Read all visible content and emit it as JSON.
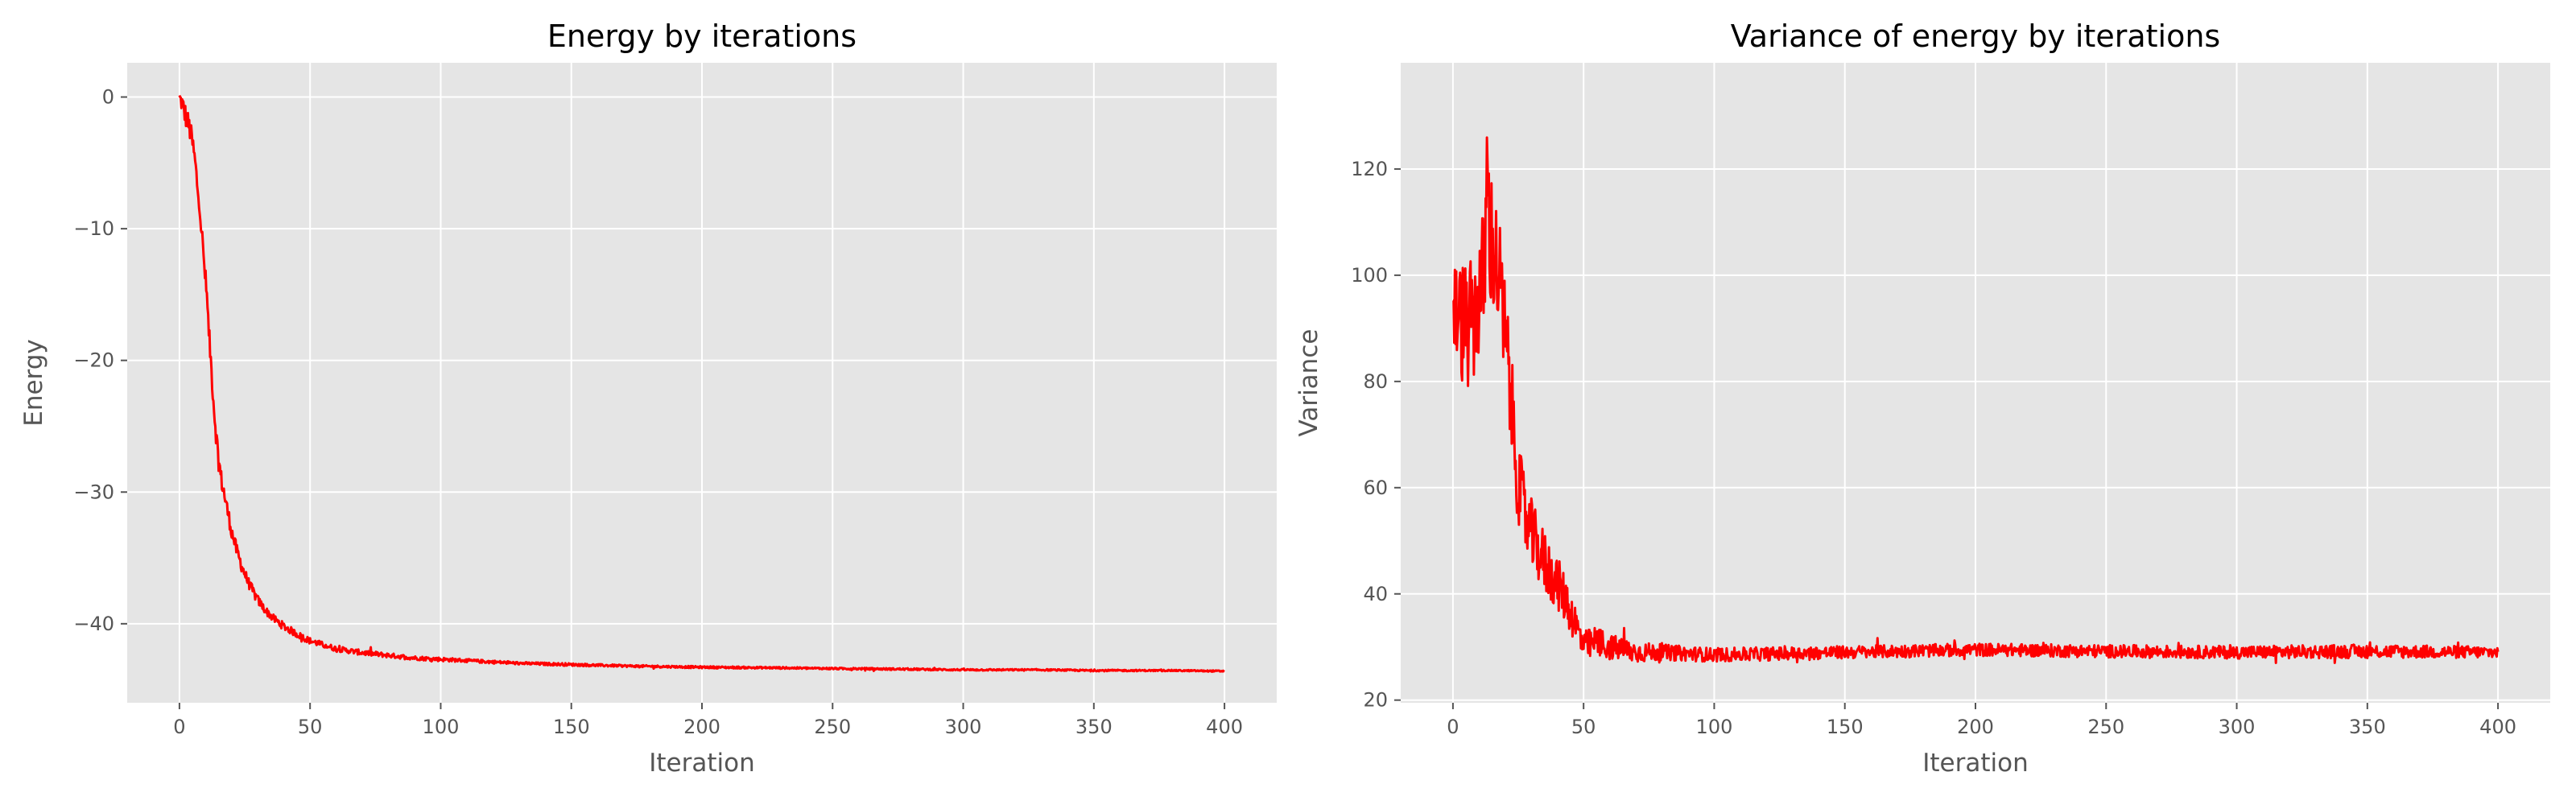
{
  "chart_data": [
    {
      "type": "line",
      "title": "Energy by iterations",
      "xlabel": "Iteration",
      "ylabel": "Energy",
      "xlim": [
        -20,
        420
      ],
      "ylim": [
        -46,
        2.6
      ],
      "xticks": [
        0,
        50,
        100,
        150,
        200,
        250,
        300,
        350,
        400
      ],
      "yticks": [
        0,
        -10,
        -20,
        -30,
        -40
      ],
      "xtick_labels": [
        "0",
        "50",
        "100",
        "150",
        "200",
        "250",
        "300",
        "350",
        "400"
      ],
      "ytick_labels": [
        "0",
        "−10",
        "−20",
        "−30",
        "−40"
      ],
      "grid": true,
      "series": [
        {
          "color": "#ff0000",
          "x": [
            0,
            1,
            2,
            3,
            4,
            5,
            6,
            7,
            8,
            9,
            10,
            11,
            12,
            13,
            14,
            15,
            16,
            17,
            18,
            19,
            20,
            22,
            24,
            26,
            28,
            30,
            33,
            36,
            40,
            45,
            50,
            55,
            60,
            70,
            80,
            90,
            100,
            110,
            120,
            130,
            140,
            150,
            170,
            200,
            230,
            250,
            280,
            300,
            330,
            350,
            380,
            400
          ],
          "y": [
            0,
            -0.5,
            -1.2,
            -1.8,
            -2.5,
            -3.5,
            -5,
            -7,
            -9,
            -11.5,
            -14,
            -17,
            -20,
            -23,
            -25.5,
            -27.5,
            -29,
            -30,
            -31,
            -32,
            -33,
            -34.5,
            -35.7,
            -36.7,
            -37.5,
            -38.2,
            -39,
            -39.6,
            -40.2,
            -40.8,
            -41.3,
            -41.6,
            -41.9,
            -42.2,
            -42.4,
            -42.6,
            -42.7,
            -42.8,
            -42.9,
            -43.0,
            -43.05,
            -43.1,
            -43.2,
            -43.3,
            -43.35,
            -43.4,
            -43.45,
            -43.5,
            -43.5,
            -43.55,
            -43.55,
            -43.6
          ],
          "noise": [
            0.4,
            0.8,
            0.9,
            0.9,
            0.9,
            0.9,
            0.9,
            0.9,
            0.9,
            0.9,
            0.9,
            0.8,
            0.8,
            0.8,
            0.8,
            0.7,
            0.7,
            0.7,
            0.6,
            0.6,
            0.6,
            0.5,
            0.5,
            0.4,
            0.4,
            0.35,
            0.3,
            0.3,
            0.3,
            0.25,
            0.25,
            0.22,
            0.2,
            0.2,
            0.18,
            0.15,
            0.15,
            0.12,
            0.12,
            0.1,
            0.1,
            0.1,
            0.08,
            0.08,
            0.07,
            0.07,
            0.07,
            0.06,
            0.06,
            0.06,
            0.05,
            0.05
          ]
        }
      ]
    },
    {
      "type": "line",
      "title": "Variance of energy by iterations",
      "xlabel": "Iteration",
      "ylabel": "Variance",
      "xlim": [
        -20,
        420
      ],
      "ylim": [
        19.5,
        140
      ],
      "xticks": [
        0,
        50,
        100,
        150,
        200,
        250,
        300,
        350,
        400
      ],
      "yticks": [
        20,
        40,
        60,
        80,
        100,
        120
      ],
      "xtick_labels": [
        "0",
        "50",
        "100",
        "150",
        "200",
        "250",
        "300",
        "350",
        "400"
      ],
      "ytick_labels": [
        "20",
        "40",
        "60",
        "80",
        "100",
        "120"
      ],
      "grid": true,
      "series": [
        {
          "color": "#ff0000",
          "x": [
            0,
            2,
            4,
            6,
            8,
            10,
            12,
            13,
            14,
            16,
            18,
            20,
            22,
            24,
            26,
            28,
            30,
            33,
            36,
            40,
            44,
            48,
            50,
            55,
            60,
            70,
            80,
            100,
            150,
            200,
            250,
            300,
            350,
            400
          ],
          "y": [
            94,
            92,
            91,
            90,
            92,
            96,
            100,
            118,
            108,
            104,
            98,
            88,
            78,
            66,
            58,
            54,
            51,
            48,
            45,
            42,
            38,
            33,
            30,
            31,
            30,
            29,
            29,
            28.5,
            29,
            29.5,
            29.2,
            29,
            29.2,
            29
          ],
          "noise": [
            9,
            11,
            12,
            12,
            12,
            12,
            14,
            16,
            14,
            12,
            12,
            11,
            10,
            9,
            8,
            7,
            7,
            6,
            6,
            5,
            4.5,
            3.5,
            3,
            3,
            2.5,
            2,
            1.5,
            1.3,
            1.2,
            1.2,
            1.2,
            1.2,
            1.3,
            1.1
          ]
        }
      ]
    }
  ]
}
